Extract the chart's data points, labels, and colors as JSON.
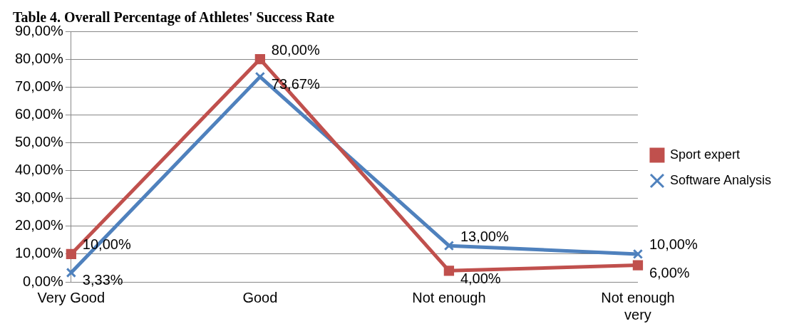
{
  "chart_data": {
    "type": "line",
    "title": "Table 4. Overall Percentage of Athletes' Success Rate",
    "categories": [
      "Very Good",
      "Good",
      "Not enough",
      "Not enough very"
    ],
    "series": [
      {
        "name": "Sport expert",
        "color": "#c0504d",
        "marker": "square",
        "values": [
          10,
          80,
          4,
          6
        ],
        "value_labels": [
          "10,00%",
          "80,00%",
          "4,00%",
          "6,00%"
        ]
      },
      {
        "name": "Software Analysis",
        "color": "#4f81bd",
        "marker": "cross",
        "values": [
          3.33,
          73.67,
          13,
          10
        ],
        "value_labels": [
          "3,33%",
          "73,67%",
          "13,00%",
          "10,00%"
        ]
      }
    ],
    "ylim": [
      0,
      90
    ],
    "yticks": [
      {
        "value": 0,
        "label": "0,00%"
      },
      {
        "value": 10,
        "label": "10,00%"
      },
      {
        "value": 20,
        "label": "20,00%"
      },
      {
        "value": 30,
        "label": "30,00%"
      },
      {
        "value": 40,
        "label": "40,00%"
      },
      {
        "value": 50,
        "label": "50,00%"
      },
      {
        "value": 60,
        "label": "60,00%"
      },
      {
        "value": 70,
        "label": "70,00%"
      },
      {
        "value": 80,
        "label": "80,00%"
      },
      {
        "value": 90,
        "label": "90,00%"
      }
    ],
    "grid": "y",
    "legend": "right"
  }
}
